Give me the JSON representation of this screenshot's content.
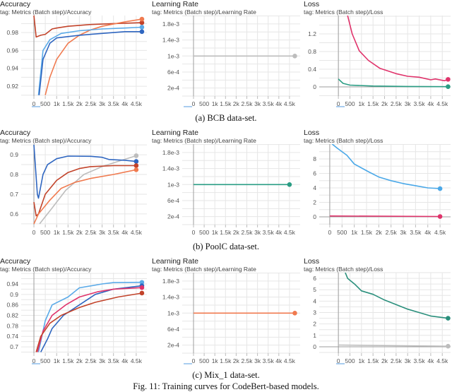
{
  "figure": {
    "caption": "Fig. 11: Training curves for CodeBert-based models.",
    "rows": [
      {
        "caption": "(a) BCB data-set."
      },
      {
        "caption": "(b) PoolC data-set."
      },
      {
        "caption": "(c) Mix_1 data-set."
      }
    ]
  },
  "chart_data": [
    {
      "type": "line",
      "title": "Accuracy",
      "tag": "tag: Metrics (Batch step)/Accuracy",
      "grid": true,
      "xlim": [
        -560,
        4970
      ],
      "ylim": [
        0.909,
        0.999
      ],
      "xticks": [
        0,
        500,
        1000,
        1500,
        2000,
        2500,
        3000,
        3500,
        4000,
        4500
      ],
      "xtick_labels": [
        "0",
        "500",
        "1k",
        "1.5k",
        "2k",
        "2.5k",
        "3k",
        "3.5k",
        "4k",
        "4.5k"
      ],
      "yticks": [
        0.92,
        0.94,
        0.96,
        0.98
      ],
      "ytick_labels": [
        "0.92",
        "0.94",
        "0.96",
        "0.98"
      ],
      "series": [
        {
          "color": "#c2432a",
          "points": [
            [
              0,
              0.999
            ],
            [
              100,
              0.975
            ],
            [
              300,
              0.977
            ],
            [
              500,
              0.978
            ],
            [
              800,
              0.984
            ],
            [
              1000,
              0.985
            ],
            [
              1500,
              0.987
            ],
            [
              2000,
              0.988
            ],
            [
              2500,
              0.989
            ],
            [
              3500,
              0.99
            ],
            [
              4750,
              0.991
            ]
          ]
        },
        {
          "color": "#f07a4f",
          "points": [
            [
              500,
              0.91
            ],
            [
              700,
              0.93
            ],
            [
              1000,
              0.95
            ],
            [
              1500,
              0.968
            ],
            [
              2000,
              0.977
            ],
            [
              2500,
              0.983
            ],
            [
              3000,
              0.987
            ],
            [
              4000,
              0.992
            ],
            [
              4750,
              0.995
            ]
          ]
        },
        {
          "color": "#5aaae8",
          "points": [
            [
              200,
              0.91
            ],
            [
              400,
              0.96
            ],
            [
              700,
              0.972
            ],
            [
              1200,
              0.979
            ],
            [
              2000,
              0.982
            ],
            [
              3000,
              0.984
            ],
            [
              4000,
              0.985
            ],
            [
              4750,
              0.986
            ]
          ]
        },
        {
          "color": "#2f66c0",
          "points": [
            [
              230,
              0.91
            ],
            [
              400,
              0.95
            ],
            [
              700,
              0.968
            ],
            [
              1000,
              0.974
            ],
            [
              2000,
              0.977
            ],
            [
              3000,
              0.979
            ],
            [
              4000,
              0.981
            ],
            [
              4750,
              0.981
            ]
          ]
        }
      ]
    },
    {
      "type": "line",
      "title": "Learning Rate",
      "tag": "tag: Metrics (Batch step)/Learning Rate",
      "grid": true,
      "xlim": [
        -530,
        5000
      ],
      "ylim": [
        0,
        0.00201
      ],
      "xticks": [
        0,
        500,
        1000,
        1500,
        2000,
        2500,
        3000,
        3500,
        4000,
        4500
      ],
      "xtick_labels": [
        "0",
        "500",
        "1k",
        "1.5k",
        "2k",
        "2.5k",
        "3k",
        "3.5k",
        "4k",
        "4.5k"
      ],
      "yticks": [
        0.0002,
        0.0006,
        0.001,
        0.0014,
        0.0018
      ],
      "ytick_labels": [
        "2e-4",
        "6e-4",
        "1e-3",
        "1.4e-3",
        "1.8e-3"
      ],
      "series": [
        {
          "color": "#bdbdbd",
          "points": [
            [
              0,
              0.001
            ],
            [
              4750,
              0.001
            ]
          ]
        }
      ]
    },
    {
      "type": "line",
      "title": "Loss",
      "tag": "tag: Metrics (Batch step)/Loss",
      "grid": true,
      "xlim": [
        -830,
        4860
      ],
      "ylim": [
        -0.208,
        1.616
      ],
      "xticks": [
        0,
        500,
        1000,
        1500,
        2000,
        2500,
        3000,
        3500,
        4000,
        4500
      ],
      "xtick_labels": [
        "0",
        "500",
        "1k",
        "1.5k",
        "2k",
        "2.5k",
        "3k",
        "3.5k",
        "4k",
        "4.5k"
      ],
      "yticks": [
        0,
        0.4,
        0.8,
        1.2
      ],
      "ytick_labels": [
        "0",
        "0.4",
        "0.8",
        "1.2"
      ],
      "series": [
        {
          "color": "#e0336b",
          "points": [
            [
              400,
              1.616
            ],
            [
              600,
              1.2
            ],
            [
              900,
              0.82
            ],
            [
              1300,
              0.6
            ],
            [
              1800,
              0.42
            ],
            [
              2500,
              0.3
            ],
            [
              3000,
              0.24
            ],
            [
              3500,
              0.22
            ],
            [
              4000,
              0.16
            ],
            [
              4200,
              0.18
            ],
            [
              4600,
              0.14
            ],
            [
              4750,
              0.17
            ]
          ]
        },
        {
          "color": "#2a9d84",
          "points": [
            [
              0,
              0.18
            ],
            [
              200,
              0.08
            ],
            [
              500,
              0.04
            ],
            [
              1500,
              0.02
            ],
            [
              3000,
              0.01
            ],
            [
              4750,
              0.005
            ]
          ]
        }
      ]
    },
    {
      "type": "line",
      "title": "Accuracy",
      "tag": "tag: Metrics (Batch step)/Accuracy",
      "grid": true,
      "xlim": [
        -560,
        4970
      ],
      "ylim": [
        0.546,
        0.954
      ],
      "xticks": [
        0,
        500,
        1000,
        1500,
        2000,
        2500,
        3000,
        3500,
        4000,
        4500
      ],
      "xtick_labels": [
        "0",
        "500",
        "1k",
        "1.5k",
        "2k",
        "2.5k",
        "3k",
        "3.5k",
        "4k",
        "4.5k"
      ],
      "yticks": [
        0.6,
        0.7,
        0.8,
        0.9
      ],
      "ytick_labels": [
        "0.6",
        "0.7",
        "0.8",
        "0.9"
      ],
      "series": [
        {
          "color": "#bdbdbd",
          "points": [
            [
              250,
              0.55
            ],
            [
              800,
              0.63
            ],
            [
              1400,
              0.72
            ],
            [
              2200,
              0.8
            ],
            [
              3000,
              0.84
            ],
            [
              3800,
              0.87
            ],
            [
              4500,
              0.895
            ]
          ]
        },
        {
          "color": "#2f66c0",
          "points": [
            [
              0,
              0.95
            ],
            [
              150,
              0.7
            ],
            [
              200,
              0.68
            ],
            [
              400,
              0.8
            ],
            [
              600,
              0.85
            ],
            [
              1000,
              0.88
            ],
            [
              1500,
              0.893
            ],
            [
              2500,
              0.892
            ],
            [
              3000,
              0.887
            ],
            [
              3300,
              0.876
            ],
            [
              4000,
              0.872
            ],
            [
              4500,
              0.866
            ]
          ]
        },
        {
          "color": "#c2432a",
          "points": [
            [
              0,
              0.66
            ],
            [
              100,
              0.59
            ],
            [
              200,
              0.6
            ],
            [
              500,
              0.7
            ],
            [
              1000,
              0.77
            ],
            [
              1500,
              0.81
            ],
            [
              2000,
              0.83
            ],
            [
              2500,
              0.84
            ],
            [
              3500,
              0.845
            ],
            [
              4500,
              0.845
            ]
          ]
        },
        {
          "color": "#f07a4f",
          "points": [
            [
              0,
              0.55
            ],
            [
              200,
              0.6
            ],
            [
              700,
              0.67
            ],
            [
              1200,
              0.73
            ],
            [
              1800,
              0.76
            ],
            [
              2500,
              0.78
            ],
            [
              3500,
              0.8
            ],
            [
              4500,
              0.824
            ]
          ]
        }
      ]
    },
    {
      "type": "line",
      "title": "Learning Rate",
      "tag": "tag: Metrics (Batch step)/Learning Rate",
      "grid": true,
      "xlim": [
        -530,
        5000
      ],
      "ylim": [
        0,
        0.00201
      ],
      "xticks": [
        0,
        500,
        1000,
        1500,
        2000,
        2500,
        3000,
        3500,
        4000,
        4500
      ],
      "xtick_labels": [
        "0",
        "500",
        "1k",
        "1.5k",
        "2k",
        "2.5k",
        "3k",
        "3.5k",
        "4k",
        "4.5k"
      ],
      "yticks": [
        0.0002,
        0.0006,
        0.001,
        0.0014,
        0.0018
      ],
      "ytick_labels": [
        "2e-4",
        "6e-4",
        "1e-3",
        "1.4e-3",
        "1.8e-3"
      ],
      "series": [
        {
          "color": "#2a9d84",
          "points": [
            [
              0,
              0.001
            ],
            [
              4500,
              0.001
            ]
          ]
        }
      ]
    },
    {
      "type": "line",
      "title": "Loss",
      "tag": "tag: Metrics (Batch step)/Loss",
      "grid": true,
      "xlim": [
        -430,
        4930
      ],
      "ylim": [
        -1.07,
        10.05
      ],
      "xticks": [
        0,
        500,
        1000,
        1500,
        2000,
        2500,
        3000,
        3500,
        4000,
        4500
      ],
      "xtick_labels": [
        "0",
        "500",
        "1k",
        "1.5k",
        "2k",
        "2.5k",
        "3k",
        "3.5k",
        "4k",
        "4.5k"
      ],
      "yticks": [
        0,
        2,
        4,
        6,
        8
      ],
      "ytick_labels": [
        "0",
        "2",
        "4",
        "6",
        "8"
      ],
      "series": [
        {
          "color": "#4aa8e8",
          "points": [
            [
              100,
              10.05
            ],
            [
              300,
              9.5
            ],
            [
              700,
              8.5
            ],
            [
              1000,
              7.3
            ],
            [
              1600,
              6.2
            ],
            [
              2000,
              5.5
            ],
            [
              2500,
              5.0
            ],
            [
              3000,
              4.6
            ],
            [
              3500,
              4.3
            ],
            [
              4000,
              4.0
            ],
            [
              4500,
              3.9
            ]
          ]
        },
        {
          "color": "#e0336b",
          "points": [
            [
              0,
              0.12
            ],
            [
              4500,
              0.05
            ]
          ]
        }
      ]
    },
    {
      "type": "line",
      "title": "Accuracy",
      "tag": "tag: Metrics (Batch step)/Accuracy",
      "grid": true,
      "xlim": [
        -560,
        4970
      ],
      "ylim": [
        0.676,
        0.983
      ],
      "xticks": [
        0,
        500,
        1000,
        1500,
        2000,
        2500,
        3000,
        3500,
        4000,
        4500
      ],
      "xtick_labels": [
        "0",
        "500",
        "1k",
        "1.5k",
        "2k",
        "2.5k",
        "3k",
        "3.5k",
        "4k",
        "4.5k"
      ],
      "yticks": [
        0.7,
        0.74,
        0.78,
        0.82,
        0.86,
        0.9,
        0.94
      ],
      "ytick_labels": [
        "0.7",
        "0.74",
        "0.78",
        "0.82",
        "0.86",
        "0.9",
        "0.94"
      ],
      "series": [
        {
          "color": "#5aaae8",
          "points": [
            [
              200,
              0.68
            ],
            [
              500,
              0.8
            ],
            [
              800,
              0.86
            ],
            [
              1500,
              0.89
            ],
            [
              2000,
              0.925
            ],
            [
              3000,
              0.94
            ],
            [
              3500,
              0.945
            ],
            [
              4750,
              0.946
            ]
          ]
        },
        {
          "color": "#2f66c0",
          "points": [
            [
              300,
              0.68
            ],
            [
              600,
              0.73
            ],
            [
              800,
              0.77
            ],
            [
              1300,
              0.82
            ],
            [
              2000,
              0.86
            ],
            [
              2700,
              0.9
            ],
            [
              3500,
              0.92
            ],
            [
              4750,
              0.933
            ]
          ]
        },
        {
          "color": "#e0336b",
          "points": [
            [
              150,
              0.68
            ],
            [
              400,
              0.76
            ],
            [
              800,
              0.82
            ],
            [
              1400,
              0.86
            ],
            [
              2000,
              0.89
            ],
            [
              2800,
              0.91
            ],
            [
              3500,
              0.92
            ],
            [
              4750,
              0.926
            ]
          ]
        },
        {
          "color": "#c2432a",
          "points": [
            [
              100,
              0.68
            ],
            [
              300,
              0.74
            ],
            [
              700,
              0.79
            ],
            [
              1200,
              0.82
            ],
            [
              2000,
              0.85
            ],
            [
              2700,
              0.87
            ],
            [
              3700,
              0.89
            ],
            [
              4750,
              0.905
            ]
          ]
        }
      ]
    },
    {
      "type": "line",
      "title": "Learning Rate",
      "tag": "tag: Metrics (Batch step)/Learning Rate",
      "grid": true,
      "xlim": [
        -530,
        5000
      ],
      "ylim": [
        0,
        0.00201
      ],
      "xticks": [
        0,
        500,
        1000,
        1500,
        2000,
        2500,
        3000,
        3500,
        4000,
        4500
      ],
      "xtick_labels": [
        "0",
        "500",
        "1k",
        "1.5k",
        "2k",
        "2.5k",
        "3k",
        "3.5k",
        "4k",
        "4.5k"
      ],
      "yticks": [
        0.0002,
        0.0006,
        0.001,
        0.0014,
        0.0018
      ],
      "ytick_labels": [
        "2e-4",
        "6e-4",
        "1e-3",
        "1.4e-3",
        "1.8e-3"
      ],
      "series": [
        {
          "color": "#f07a4f",
          "points": [
            [
              0,
              0.001
            ],
            [
              4750,
              0.001
            ]
          ]
        }
      ]
    },
    {
      "type": "line",
      "title": "Loss",
      "tag": "tag: Metrics (Batch step)/Loss",
      "grid": true,
      "xlim": [
        -830,
        4860
      ],
      "ylim": [
        -0.56,
        6.5
      ],
      "xticks": [
        0,
        500,
        1000,
        1500,
        2000,
        2500,
        3000,
        3500,
        4000,
        4500
      ],
      "xtick_labels": [
        "0",
        "500",
        "1k",
        "1.5k",
        "2k",
        "2.5k",
        "3k",
        "3.5k",
        "4k",
        "4.5k"
      ],
      "yticks": [
        0,
        1,
        2,
        3,
        4,
        5,
        6
      ],
      "ytick_labels": [
        "0",
        "1",
        "2",
        "3",
        "4",
        "5",
        "6"
      ],
      "series": [
        {
          "color": "#2a8f7c",
          "points": [
            [
              300,
              6.5
            ],
            [
              400,
              6.0
            ],
            [
              700,
              5.5
            ],
            [
              1000,
              4.9
            ],
            [
              1500,
              4.6
            ],
            [
              2000,
              4.1
            ],
            [
              2500,
              3.7
            ],
            [
              3000,
              3.3
            ],
            [
              3500,
              3.0
            ],
            [
              4000,
              2.7
            ],
            [
              4750,
              2.5
            ]
          ]
        },
        {
          "color": "#bdbdbd",
          "points": [
            [
              0,
              0.15
            ],
            [
              4750,
              0.05
            ]
          ]
        }
      ]
    }
  ]
}
